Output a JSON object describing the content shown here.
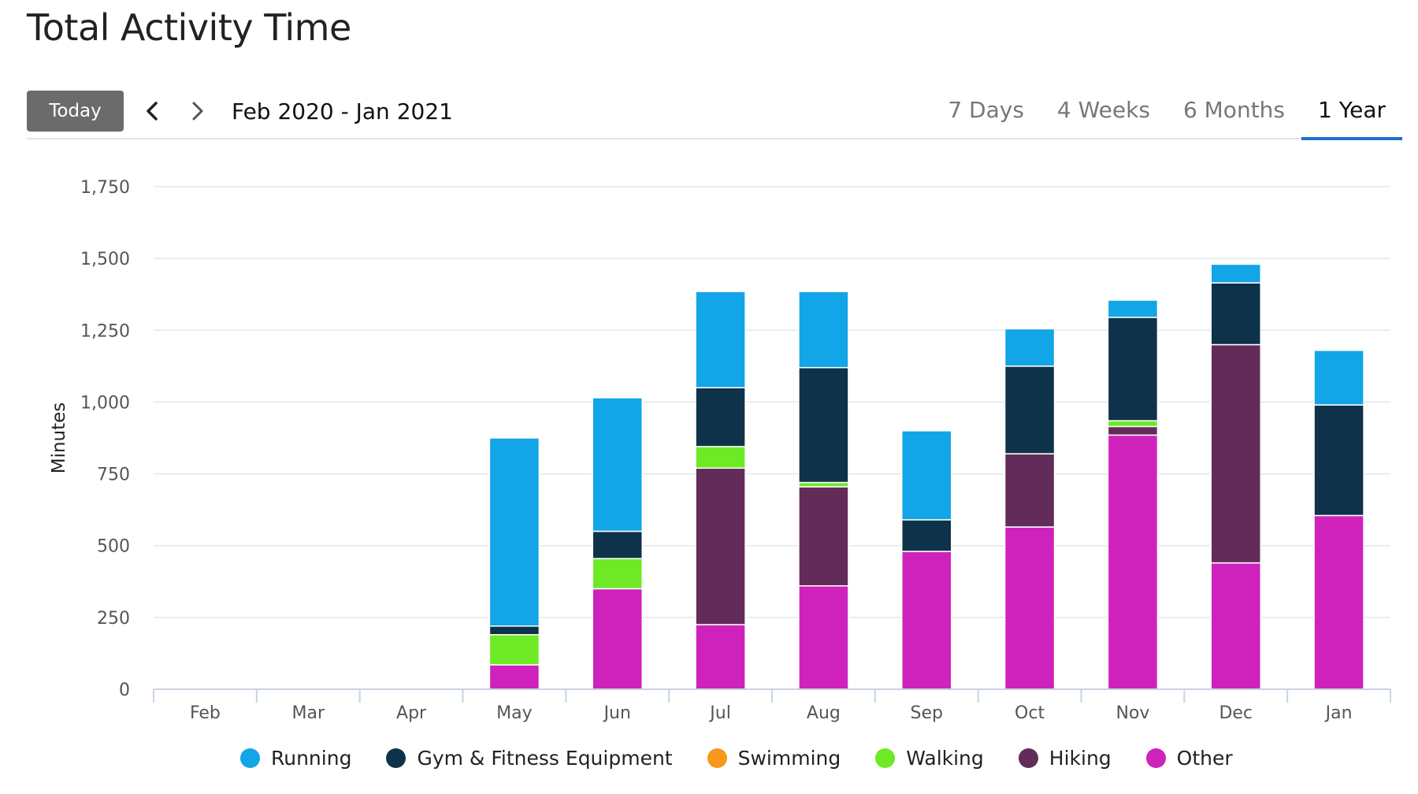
{
  "page": {
    "title": "Total Activity Time"
  },
  "toolbar": {
    "today_label": "Today",
    "prev_icon": "chevron-left-icon",
    "next_icon": "chevron-right-icon",
    "range_label": "Feb 2020 - Jan 2021",
    "tabs": [
      {
        "label": "7 Days",
        "active": false
      },
      {
        "label": "4 Weeks",
        "active": false
      },
      {
        "label": "6 Months",
        "active": false
      },
      {
        "label": "1 Year",
        "active": true
      }
    ]
  },
  "chart_data": {
    "type": "bar",
    "stacked": true,
    "title": "",
    "xlabel": "",
    "ylabel": "Minutes",
    "ylim": [
      0,
      1750
    ],
    "yticks": [
      0,
      250,
      500,
      750,
      1000,
      1250,
      1500,
      1750
    ],
    "ytick_labels": [
      "0",
      "250",
      "500",
      "750",
      "1,000",
      "1,250",
      "1,500",
      "1,750"
    ],
    "grid": true,
    "legend_position": "bottom",
    "categories": [
      "Feb",
      "Mar",
      "Apr",
      "May",
      "Jun",
      "Jul",
      "Aug",
      "Sep",
      "Oct",
      "Nov",
      "Dec",
      "Jan"
    ],
    "series": [
      {
        "name": "Other",
        "color": "#cf22bd",
        "values": [
          0,
          0,
          0,
          85,
          350,
          225,
          360,
          480,
          565,
          885,
          440,
          605
        ]
      },
      {
        "name": "Hiking",
        "color": "#622b59",
        "values": [
          0,
          0,
          0,
          0,
          0,
          545,
          345,
          0,
          255,
          30,
          760,
          0
        ]
      },
      {
        "name": "Walking",
        "color": "#6ee925",
        "values": [
          0,
          0,
          0,
          105,
          105,
          75,
          15,
          0,
          0,
          20,
          0,
          0
        ]
      },
      {
        "name": "Swimming",
        "color": "#f7981d",
        "values": [
          0,
          0,
          0,
          0,
          0,
          0,
          0,
          0,
          0,
          0,
          0,
          0
        ]
      },
      {
        "name": "Gym & Fitness Equipment",
        "color": "#0f324b",
        "values": [
          0,
          0,
          0,
          30,
          95,
          205,
          400,
          110,
          305,
          360,
          215,
          385
        ]
      },
      {
        "name": "Running",
        "color": "#12a5e7",
        "values": [
          0,
          0,
          0,
          655,
          465,
          335,
          265,
          310,
          130,
          60,
          65,
          190
        ]
      }
    ]
  },
  "legend": [
    {
      "name": "Running",
      "color": "#12a5e7"
    },
    {
      "name": "Gym & Fitness Equipment",
      "color": "#0f324b"
    },
    {
      "name": "Swimming",
      "color": "#f7981d"
    },
    {
      "name": "Walking",
      "color": "#6ee925"
    },
    {
      "name": "Hiking",
      "color": "#622b59"
    },
    {
      "name": "Other",
      "color": "#cf22bd"
    }
  ]
}
